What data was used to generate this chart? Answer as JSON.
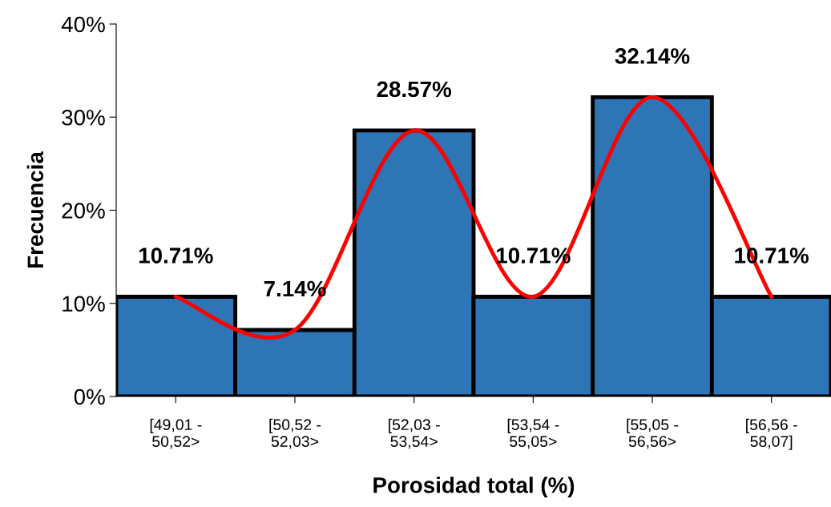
{
  "chart_data": {
    "type": "bar",
    "xlabel": "Porosidad total (%)",
    "ylabel": "Frecuencia",
    "categories": [
      "[49,01 -\n50,52>",
      "[50,52 -\n52,03>",
      "[52,03 -\n53,54>",
      "[53,54 -\n55,05>",
      "[55,05 -\n56,56>",
      "[56,56 -\n58,07]"
    ],
    "series": [
      {
        "color": "#2e75b6",
        "values": [
          10.71,
          7.14,
          28.57,
          10.71,
          32.14,
          10.71
        ],
        "value_labels": [
          "10.71%",
          "7.14%",
          "28.57%",
          "10.71%",
          "32.14%",
          "10.71%"
        ]
      },
      {
        "type": "line",
        "color": "#ff0000",
        "values": [
          10.71,
          7.14,
          28.57,
          10.71,
          32.14,
          10.71
        ]
      }
    ],
    "ylim": [
      0,
      40
    ],
    "yticks": [
      {
        "value": 0,
        "label": "0%"
      },
      {
        "value": 10,
        "label": "10%"
      },
      {
        "value": 20,
        "label": "20%"
      },
      {
        "value": 30,
        "label": "30%"
      },
      {
        "value": 40,
        "label": "40%"
      }
    ],
    "grid": false,
    "legend": false
  }
}
